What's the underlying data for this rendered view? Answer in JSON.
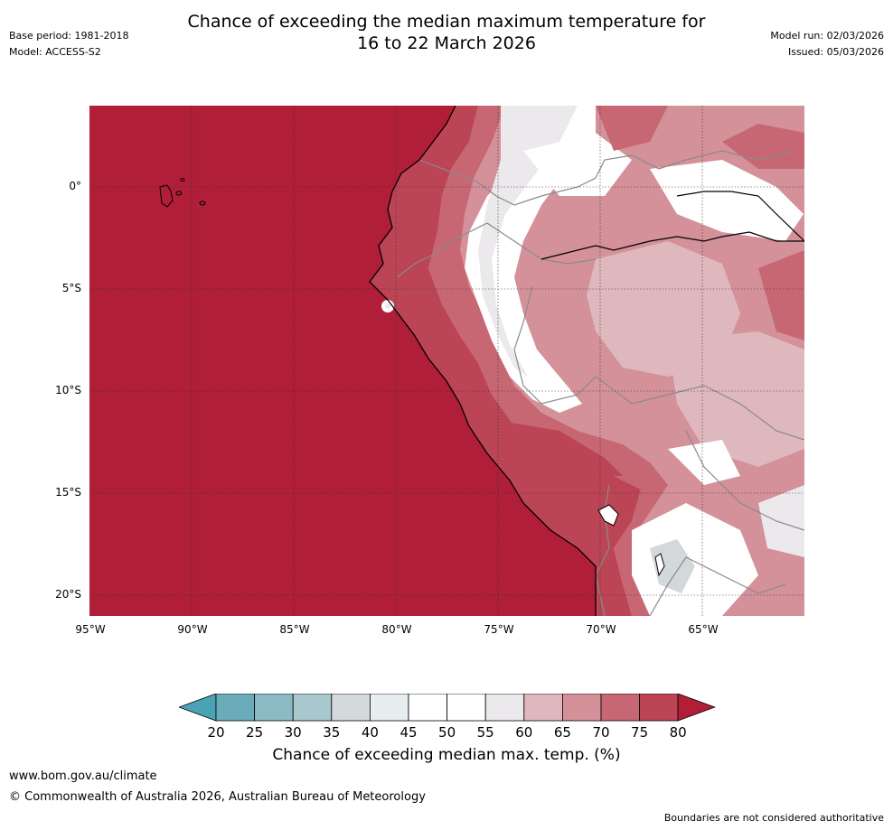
{
  "header": {
    "title_line1": "Chance of exceeding the median maximum temperature for",
    "title_line2": "16 to 22 March 2026",
    "base_period": "Base period: 1981-2018",
    "model": "Model: ACCESS-S2",
    "model_run": "Model run: 02/03/2026",
    "issued": "Issued: 05/03/2026"
  },
  "map": {
    "lat_labels": [
      "0°",
      "5°S",
      "10°S",
      "15°S",
      "20°S"
    ],
    "lat_values": [
      0,
      -5,
      -10,
      -15,
      -20
    ],
    "lon_labels": [
      "95°W",
      "90°W",
      "85°W",
      "80°W",
      "75°W",
      "70°W",
      "65°W"
    ],
    "lon_values": [
      -95,
      -90,
      -85,
      -80,
      -75,
      -70,
      -65
    ],
    "lat_range": [
      -21,
      4
    ],
    "lon_range": [
      -95,
      -60
    ]
  },
  "colorbar": {
    "ticks": [
      "20",
      "25",
      "30",
      "35",
      "40",
      "45",
      "50",
      "55",
      "60",
      "65",
      "70",
      "75",
      "80"
    ],
    "colors": [
      "#6aacb9",
      "#8cbac4",
      "#a8c8cd",
      "#d3d8db",
      "#e8edf0",
      "#ffffff",
      "#ffffff",
      "#ebe9eb",
      "#dfb8bd",
      "#d4919a",
      "#c76773",
      "#bc4555"
    ],
    "under_color": "#4aa3b2",
    "over_color": "#b01e38",
    "label": "Chance of exceeding median max. temp. (%)"
  },
  "colors": {
    "ocean_high": "#b01e38",
    "band_75": "#bc4555",
    "band_70": "#c76773",
    "band_65": "#d4919a",
    "band_60": "#dfb8bd",
    "band_55": "#ebe9eb",
    "band_50": "#ffffff",
    "band_40": "#d3d8db"
  },
  "footer": {
    "website": "www.bom.gov.au/climate",
    "copyright": "© Commonwealth of Australia 2026, Australian Bureau of Meteorology",
    "disclaimer": "Boundaries are not considered authoritative"
  }
}
